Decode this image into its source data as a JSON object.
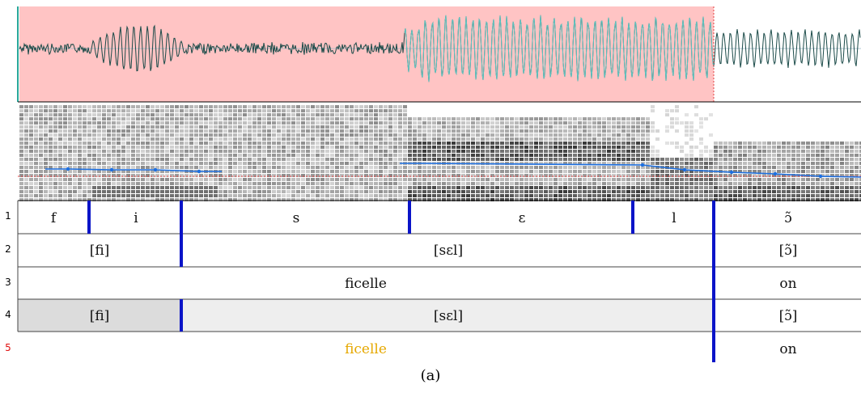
{
  "caption": "(a)",
  "waveform": {
    "highlight_color": "#ffc4c4",
    "wave_color": "#1a4a48",
    "wave_highlight_color": "#5fc8c4"
  },
  "spectrogram": {
    "pitch_color": "#1d6fe0"
  },
  "boundary_color": "#0a14c8",
  "tiers": [
    {
      "number": "1",
      "segments": [
        {
          "label": "f"
        },
        {
          "label": "i"
        },
        {
          "label": "s"
        },
        {
          "label": "ɛ"
        },
        {
          "label": "l"
        },
        {
          "label": "ɔ̃"
        }
      ]
    },
    {
      "number": "2",
      "segments": [
        {
          "label": "[fi]"
        },
        {
          "label": "[sɛl]"
        },
        {
          "label": "[ɔ̃]"
        }
      ]
    },
    {
      "number": "3",
      "segments": [
        {
          "label": "ficelle"
        },
        {
          "label": "on"
        }
      ]
    },
    {
      "number": "4",
      "segments": [
        {
          "label": "[fi]"
        },
        {
          "label": "[sɛl]"
        },
        {
          "label": "[ɔ̃]"
        }
      ]
    },
    {
      "number": "5",
      "active": true,
      "segments": [
        {
          "label": "ficelle"
        },
        {
          "label": "on"
        }
      ]
    }
  ]
}
